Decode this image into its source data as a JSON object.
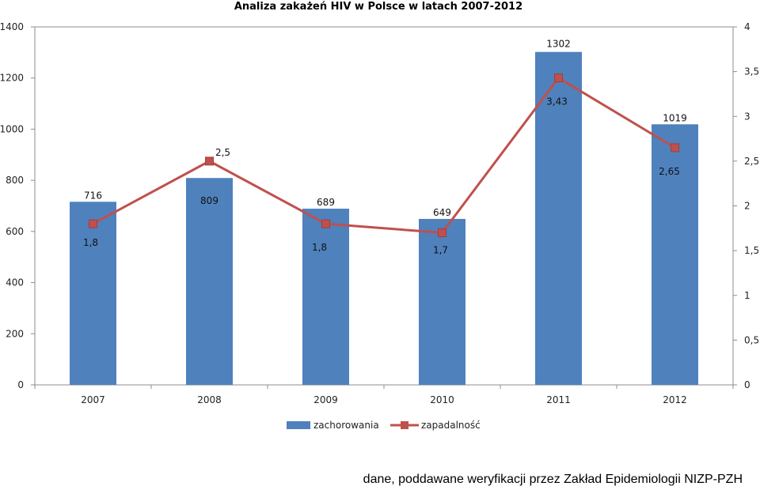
{
  "chart_data": {
    "type": "bar+line",
    "title": "Analiza zakażeń HIV w Polsce w latach 2007-2012",
    "categories": [
      "2007",
      "2008",
      "2009",
      "2010",
      "2011",
      "2012"
    ],
    "series": [
      {
        "name": "zachorowania",
        "type": "bar",
        "axis": "left",
        "values": [
          716,
          809,
          689,
          649,
          1302,
          1019
        ],
        "labels": [
          "716",
          "809",
          "689",
          "649",
          "1302",
          "1019"
        ],
        "color": "#4f81bd"
      },
      {
        "name": "zapadalność",
        "type": "line",
        "axis": "right",
        "values": [
          1.8,
          2.5,
          1.8,
          1.7,
          3.43,
          2.65
        ],
        "labels": [
          "1,8",
          "2,5",
          "1,8",
          "1,7",
          "3,43",
          "2,65"
        ],
        "color": "#c0504d"
      }
    ],
    "y_left": {
      "min": 0,
      "max": 1400,
      "ticks": [
        "0",
        "200",
        "400",
        "600",
        "800",
        "1000",
        "1200",
        "1400"
      ]
    },
    "y_right": {
      "min": 0,
      "max": 4,
      "ticks": [
        "0",
        "0,5",
        "1",
        "1,5",
        "2",
        "2,5",
        "3",
        "3,5",
        "4"
      ]
    },
    "grid": false,
    "legend_position": "bottom"
  },
  "footnote": "dane, poddawane weryfikacji przez Zakład Epidemiologii NIZP-PZH"
}
